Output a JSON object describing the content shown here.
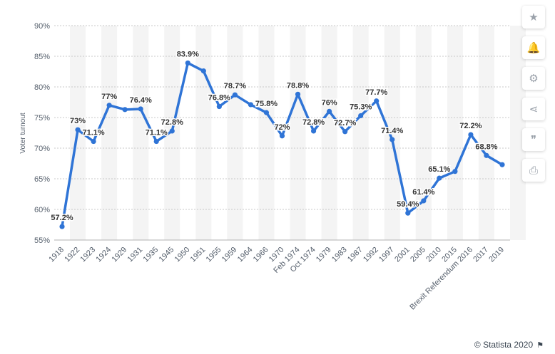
{
  "chart_data": {
    "type": "line",
    "ylabel": "Voter turnout",
    "ylim": [
      55,
      90
    ],
    "y_ticks": [
      55,
      60,
      65,
      70,
      75,
      80,
      85,
      90
    ],
    "y_tick_suffix": "%",
    "grid": true,
    "categories": [
      "1918",
      "1922",
      "1923",
      "1924",
      "1929",
      "1931",
      "1935",
      "1945",
      "1950",
      "1951",
      "1955",
      "1959",
      "1964",
      "1966",
      "1970",
      "Feb 1974",
      "Oct 1974",
      "1979",
      "1983",
      "1987",
      "1992",
      "1997",
      "2001",
      "2005",
      "2010",
      "2015",
      "Brexit Referendum 2016",
      "2017",
      "2019"
    ],
    "values": [
      57.2,
      73,
      71.1,
      77,
      76.3,
      76.4,
      71.1,
      72.8,
      83.9,
      82.6,
      76.8,
      78.7,
      77.1,
      75.8,
      72,
      78.8,
      72.8,
      76,
      72.7,
      75.3,
      77.7,
      71.4,
      59.4,
      61.4,
      65.1,
      66.2,
      72.2,
      68.8,
      67.3
    ],
    "data_labels": [
      "57.2%",
      "73%",
      "71.1%",
      "77%",
      "",
      "76.4%",
      "71.1%",
      "72.8%",
      "83.9%",
      "",
      "76.8%",
      "78.7%",
      "",
      "75.8%",
      "72%",
      "78.8%",
      "72.8%",
      "76%",
      "72.7%",
      "75.3%",
      "77.7%",
      "71.4%",
      "59.4%",
      "61.4%",
      "65.1%",
      "",
      "72.2%",
      "68.8%",
      ""
    ],
    "line_color": "#2f74d6",
    "band_color": "#f4f4f4"
  },
  "toolbar": [
    {
      "name": "star-icon",
      "glyph": "★"
    },
    {
      "name": "bell-icon",
      "glyph": "🔔"
    },
    {
      "name": "gear-icon",
      "glyph": "⚙"
    },
    {
      "name": "share-icon",
      "glyph": "⋖"
    },
    {
      "name": "quote-icon",
      "glyph": "❞"
    },
    {
      "name": "print-icon",
      "glyph": "⎙"
    }
  ],
  "credit": "© Statista 2020",
  "credit_flag": "⚑"
}
